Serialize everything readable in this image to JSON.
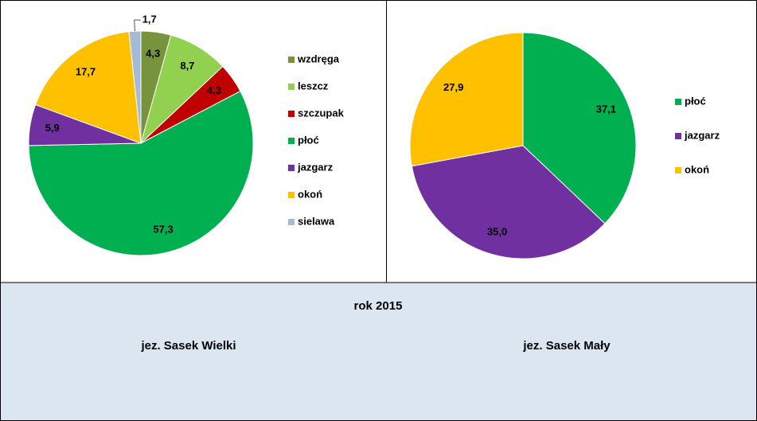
{
  "chart_data": [
    {
      "type": "pie",
      "categories": [
        "wzdręga",
        "leszcz",
        "szczupak",
        "płoć",
        "jazgarz",
        "okoń",
        "sielawa"
      ],
      "values": [
        4.3,
        8.7,
        4.3,
        57.3,
        5.9,
        17.7,
        1.7
      ],
      "value_labels": [
        "4,3",
        "8,7",
        "4,3",
        "57,3",
        "5,9",
        "17,7",
        "1,7"
      ],
      "colors": [
        "#77933c",
        "#92d050",
        "#c00000",
        "#00b050",
        "#7030a0",
        "#ffc000",
        "#a6b9d6"
      ]
    },
    {
      "type": "pie",
      "categories": [
        "płoć",
        "jazgarz",
        "okoń"
      ],
      "values": [
        37.1,
        35.0,
        27.9
      ],
      "value_labels": [
        "37,1",
        "35,0",
        "27,9"
      ],
      "colors": [
        "#00b050",
        "#7030a0",
        "#ffc000"
      ]
    }
  ],
  "caption": {
    "year": "rok 2015",
    "left": "jez. Sasek Wielki",
    "right": "jez. Sasek Mały"
  }
}
